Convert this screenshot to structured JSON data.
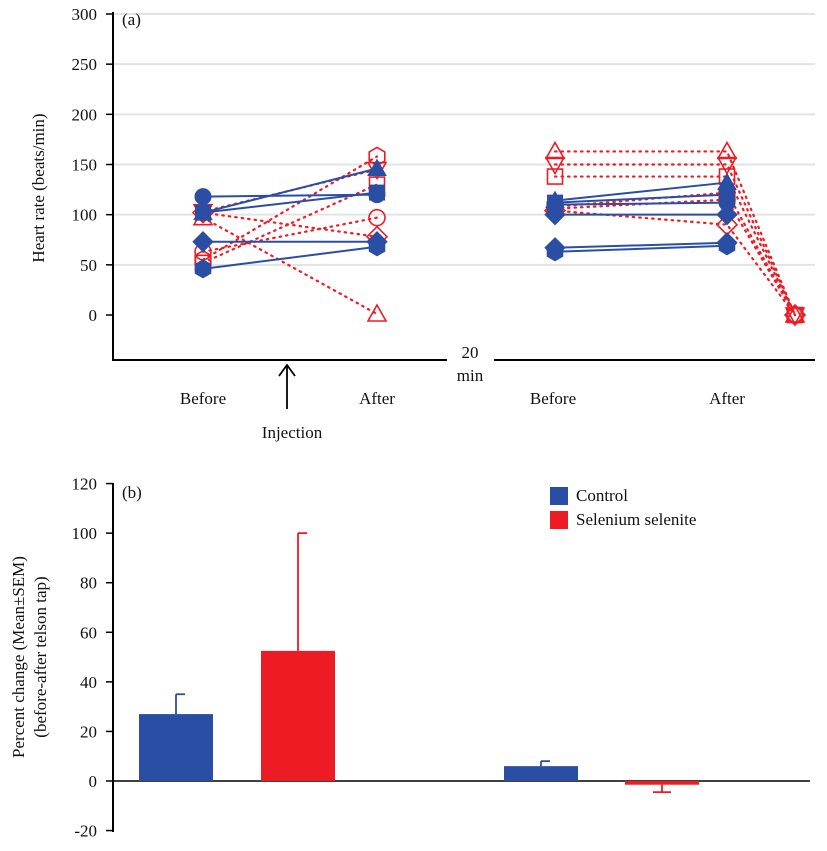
{
  "colors": {
    "control": "#2b4ea5",
    "selenium": "#ed1c24",
    "grid": "#e3e3e3"
  },
  "chart_data": [
    {
      "type": "line",
      "panel_label": "(a)",
      "ylabel": "Heart rate (beats/min)",
      "ylim": [
        0,
        300
      ],
      "yticks": [
        "0",
        "50",
        "100",
        "150",
        "200",
        "250",
        "300"
      ],
      "xticks": [
        "Before",
        "After",
        "Before",
        "After"
      ],
      "break_label": [
        "20",
        "min"
      ],
      "annotation": "Injection",
      "grid": true,
      "session1": {
        "control": [
          {
            "marker": "circle",
            "before": 118,
            "after": 120
          },
          {
            "marker": "triangle",
            "before": 102,
            "after": 146
          },
          {
            "marker": "square",
            "before": 102,
            "after": 122
          },
          {
            "marker": "diamond",
            "before": 73,
            "after": 73
          },
          {
            "marker": "hexagon",
            "before": 46,
            "after": 68
          }
        ],
        "selenium": [
          {
            "marker": "hexagon",
            "before": 55,
            "after": 158
          },
          {
            "marker": "down-triangle",
            "before": 103,
            "after": 145
          },
          {
            "marker": "square",
            "before": 52,
            "after": 130
          },
          {
            "marker": "circle",
            "before": 63,
            "after": 97
          },
          {
            "marker": "diamond",
            "before": 102,
            "after": 78
          },
          {
            "marker": "triangle",
            "before": 97,
            "after": 1
          }
        ]
      },
      "session2": {
        "control": [
          {
            "marker": "triangle",
            "before": 114,
            "after": 132
          },
          {
            "marker": "square",
            "before": 112,
            "after": 120
          },
          {
            "marker": "circle",
            "before": 110,
            "after": 112
          },
          {
            "marker": "diamond",
            "before": 100,
            "after": 100
          },
          {
            "marker": "diamond",
            "before": 67,
            "after": 72
          },
          {
            "marker": "hexagon",
            "before": 63,
            "after": 69
          }
        ],
        "selenium": [
          {
            "marker": "triangle",
            "before": 163,
            "after": 163,
            "final": 0
          },
          {
            "marker": "down-triangle",
            "before": 150,
            "after": 150,
            "final": 0
          },
          {
            "marker": "square",
            "before": 138,
            "after": 138,
            "final": 0
          },
          {
            "marker": "circle",
            "before": 106,
            "after": 115,
            "final": 0
          },
          {
            "marker": "hexagon",
            "before": 108,
            "after": 122,
            "final": 0
          },
          {
            "marker": "diamond",
            "before": 104,
            "after": 90,
            "final": 0
          }
        ]
      }
    },
    {
      "type": "bar",
      "panel_label": "(b)",
      "ylabel_lines": [
        "Percent change (Mean±SEM)",
        "(before-after telson tap)"
      ],
      "ylim": [
        -20,
        120
      ],
      "yticks": [
        "-20",
        "0",
        "20",
        "40",
        "60",
        "80",
        "100",
        "120"
      ],
      "legend": "top-right",
      "series": [
        {
          "name": "Control",
          "values": [
            27,
            6
          ],
          "error": [
            8,
            2
          ]
        },
        {
          "name": "Selenium selenite",
          "values": [
            52.5,
            -1.5
          ],
          "error": [
            47.5,
            3
          ]
        }
      ]
    }
  ]
}
